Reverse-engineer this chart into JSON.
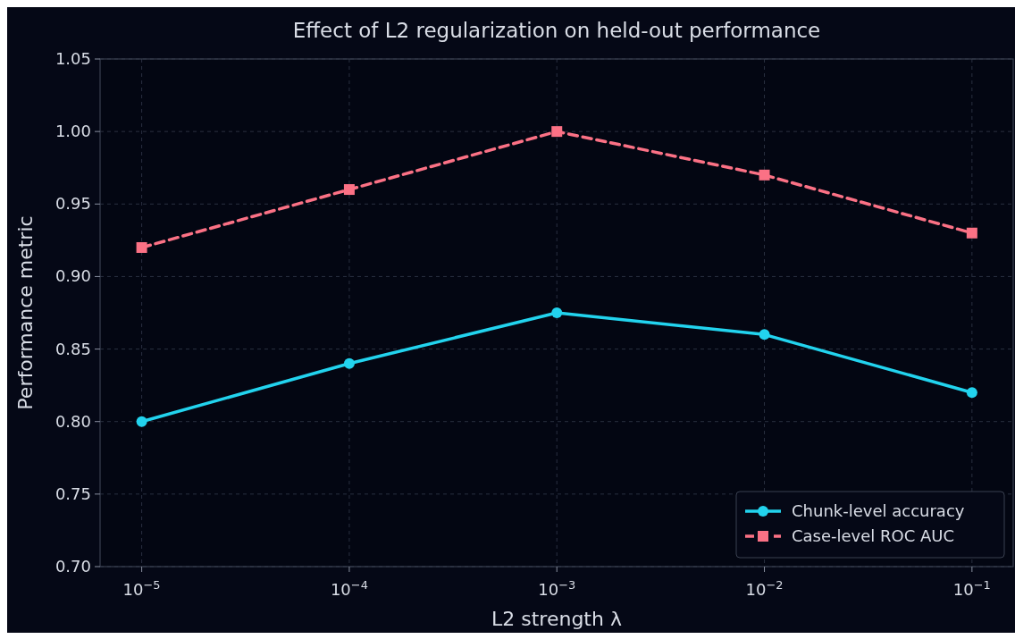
{
  "chart_data": {
    "type": "line",
    "title": "Effect of L2 regularization on held-out performance",
    "xlabel": "L2 strength λ",
    "ylabel": "Performance metric",
    "x": [
      1e-05,
      0.0001,
      0.001,
      0.01,
      0.1
    ],
    "series": [
      {
        "name": "Chunk-level accuracy",
        "color": "#22d3ee",
        "values": [
          0.8,
          0.84,
          0.875,
          0.86,
          0.82
        ],
        "marker": "circle",
        "line_style": "solid"
      },
      {
        "name": "Case-level ROC AUC",
        "color": "#fb7185",
        "values": [
          0.92,
          0.96,
          1.0,
          0.97,
          0.93
        ],
        "marker": "square",
        "line_style": "dashed"
      }
    ],
    "log": "x",
    "xlim": [
      6.3e-06,
      0.158
    ],
    "xticks": [
      {
        "value": 1e-05,
        "label": "10$^{−5}$"
      },
      {
        "value": 0.0001,
        "label": "10$^{−4}$"
      },
      {
        "value": 0.001,
        "label": "10$^{−3}$"
      },
      {
        "value": 0.01,
        "label": "10$^{−2}$"
      },
      {
        "value": 0.1,
        "label": "10$^{−1}$"
      }
    ],
    "ylim": [
      0.7,
      1.05
    ],
    "yticks": [
      {
        "value": 0.7,
        "label": "0.70"
      },
      {
        "value": 0.75,
        "label": "0.75"
      },
      {
        "value": 0.8,
        "label": "0.80"
      },
      {
        "value": 0.85,
        "label": "0.85"
      },
      {
        "value": 0.9,
        "label": "0.90"
      },
      {
        "value": 0.95,
        "label": "0.95"
      },
      {
        "value": 1.0,
        "label": "1.00"
      },
      {
        "value": 1.05,
        "label": "1.05"
      }
    ],
    "grid": true,
    "legend": "bottom right"
  }
}
